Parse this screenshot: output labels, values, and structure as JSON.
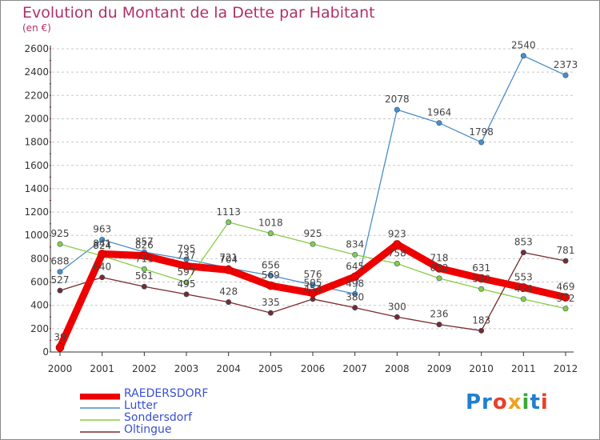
{
  "header": {
    "title": "Evolution du Montant de la Dette par Habitant",
    "subtitle": "(en €)"
  },
  "logo": {
    "text": "Proxiti"
  },
  "chart_data": {
    "type": "line",
    "title": "Evolution du Montant de la Dette par Habitant",
    "subtitle": "(en €)",
    "xlabel": "",
    "ylabel": "",
    "x": [
      "2000",
      "2001",
      "2002",
      "2003",
      "2004",
      "2005",
      "2006",
      "2007",
      "2008",
      "2009",
      "2010",
      "2011",
      "2012"
    ],
    "ylim": [
      0,
      2600
    ],
    "yticks": [
      0,
      200,
      400,
      600,
      800,
      1000,
      1200,
      1400,
      1600,
      1800,
      2000,
      2200,
      2400,
      2600
    ],
    "grid": "horizontal dashed",
    "legend_position": "bottom-left",
    "series": [
      {
        "name": "RAEDERSDORF",
        "color": "#ee0000",
        "values": [
          39,
          841,
          826,
          737,
          704,
          569,
          505,
          645,
          923,
          718,
          631,
          553,
          469
        ]
      },
      {
        "name": "Lutter",
        "color": "#4a8ec8",
        "values": [
          688,
          963,
          857,
          795,
          721,
          656,
          576,
          498,
          2078,
          1964,
          1798,
          2540,
          2373
        ]
      },
      {
        "name": "Sondersdorf",
        "color": "#88cc44",
        "values": [
          925,
          824,
          711,
          597,
          1113,
          1018,
          925,
          834,
          758,
          632,
          540,
          454,
          372
        ]
      },
      {
        "name": "Oltingue",
        "color": "#7a2a2a",
        "values": [
          527,
          640,
          561,
          495,
          428,
          335,
          454,
          380,
          300,
          236,
          183,
          853,
          781
        ]
      }
    ]
  }
}
